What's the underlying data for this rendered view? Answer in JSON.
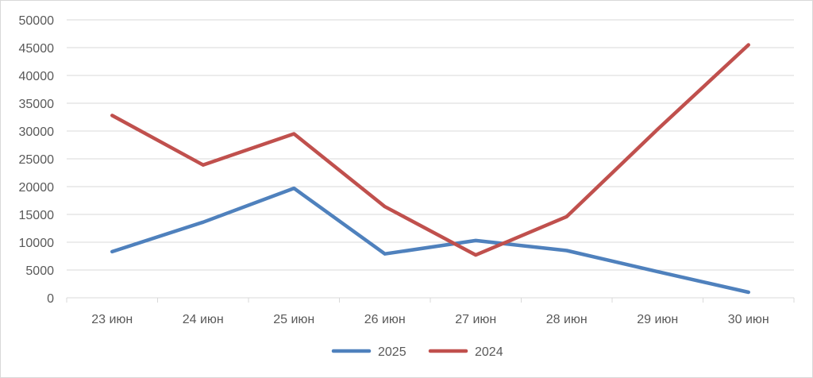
{
  "chart_data": {
    "type": "line",
    "categories": [
      "23 июн",
      "24 июн",
      "25 июн",
      "26 июн",
      "27 июн",
      "28 июн",
      "29 июн",
      "30 июн"
    ],
    "ylim": [
      0,
      50000
    ],
    "yticks": [
      "0",
      "5000",
      "10000",
      "15000",
      "20000",
      "25000",
      "30000",
      "35000",
      "40000",
      "45000",
      "50000"
    ],
    "grid": true,
    "legend_position": "bottom",
    "series": [
      {
        "name": "2025",
        "color": "#4f81bd",
        "values": [
          8300,
          13600,
          19700,
          7900,
          10300,
          8500,
          4700,
          1000
        ]
      },
      {
        "name": "2024",
        "color": "#c0504d",
        "values": [
          32800,
          23900,
          29500,
          16400,
          7700,
          14600,
          30300,
          45500
        ]
      }
    ]
  }
}
